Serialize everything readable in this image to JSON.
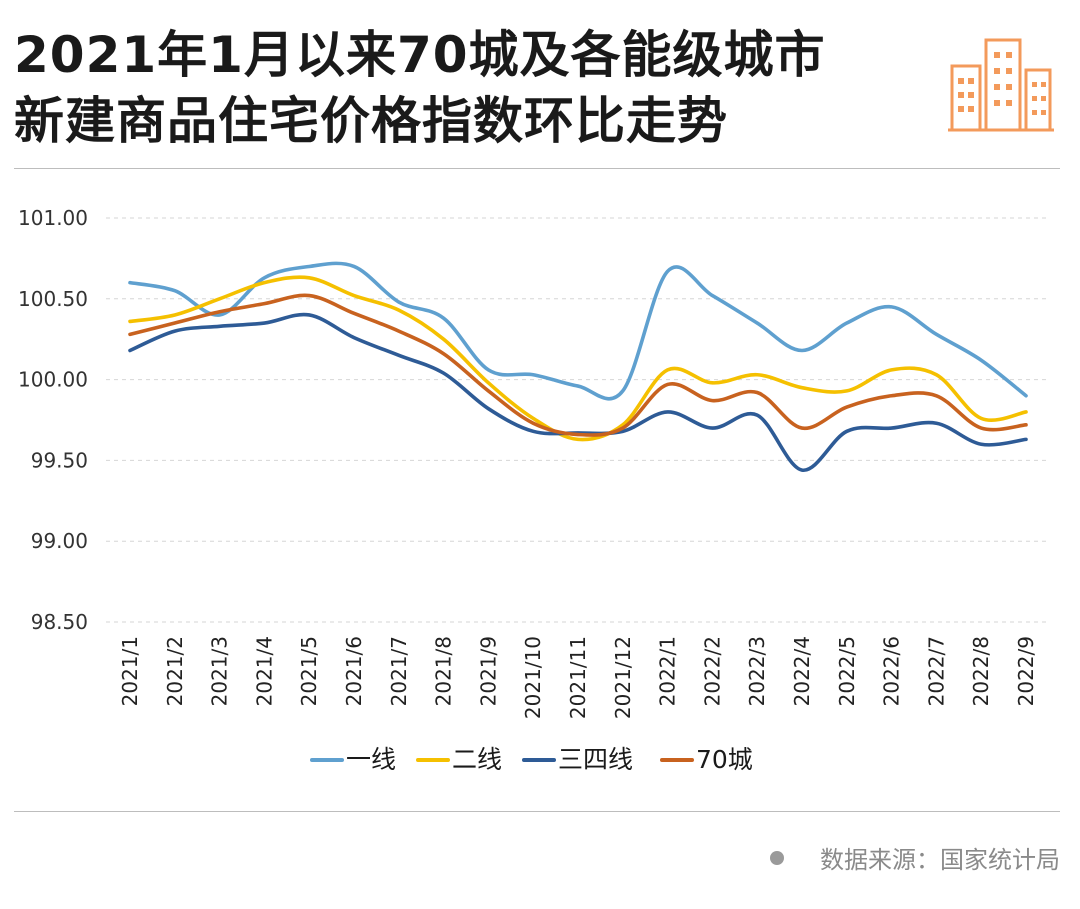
{
  "title": {
    "line1": "2021年1月以来70城及各能级城市",
    "line2": "新建商品住宅价格指数环比走势"
  },
  "logo_icon": "buildings-icon",
  "accent_color": "#f39a5b",
  "source": {
    "icon": "bullet-dot-icon",
    "text": "数据来源：国家统计局"
  },
  "chart_data": {
    "type": "line",
    "categories": [
      "2021/1",
      "2021/2",
      "2021/3",
      "2021/4",
      "2021/5",
      "2021/6",
      "2021/7",
      "2021/8",
      "2021/9",
      "2021/10",
      "2021/11",
      "2021/12",
      "2022/1",
      "2022/2",
      "2022/3",
      "2022/4",
      "2022/5",
      "2022/6",
      "2022/7",
      "2022/8",
      "2022/9"
    ],
    "yticks": [
      "101.00",
      "100.50",
      "100.00",
      "99.50",
      "99.00",
      "98.50"
    ],
    "ylim": [
      98.5,
      101.0
    ],
    "grid": "horizontal dashed",
    "legend_position": "bottom",
    "series": [
      {
        "name": "一线",
        "color": "#5fa0cf",
        "values": [
          100.6,
          100.55,
          100.4,
          100.63,
          100.7,
          100.7,
          100.48,
          100.38,
          100.06,
          100.03,
          99.96,
          99.93,
          100.67,
          100.52,
          100.35,
          100.18,
          100.35,
          100.45,
          100.28,
          100.12,
          99.9
        ]
      },
      {
        "name": "二线",
        "color": "#f5c000",
        "values": [
          100.36,
          100.4,
          100.5,
          100.6,
          100.63,
          100.52,
          100.43,
          100.25,
          99.98,
          99.76,
          99.63,
          99.72,
          100.06,
          99.98,
          100.03,
          99.95,
          99.93,
          100.06,
          100.03,
          99.76,
          99.8
        ]
      },
      {
        "name": "三四线",
        "color": "#2e5b96",
        "values": [
          100.18,
          100.3,
          100.33,
          100.35,
          100.4,
          100.26,
          100.15,
          100.04,
          99.82,
          99.68,
          99.67,
          99.68,
          99.8,
          99.7,
          99.78,
          99.44,
          99.68,
          99.7,
          99.73,
          99.6,
          99.63
        ]
      },
      {
        "name": "70城",
        "color": "#c8621f",
        "values": [
          100.28,
          100.35,
          100.42,
          100.47,
          100.52,
          100.41,
          100.3,
          100.16,
          99.93,
          99.73,
          99.66,
          99.7,
          99.97,
          99.87,
          99.92,
          99.7,
          99.83,
          99.9,
          99.9,
          99.7,
          99.72
        ]
      }
    ]
  }
}
